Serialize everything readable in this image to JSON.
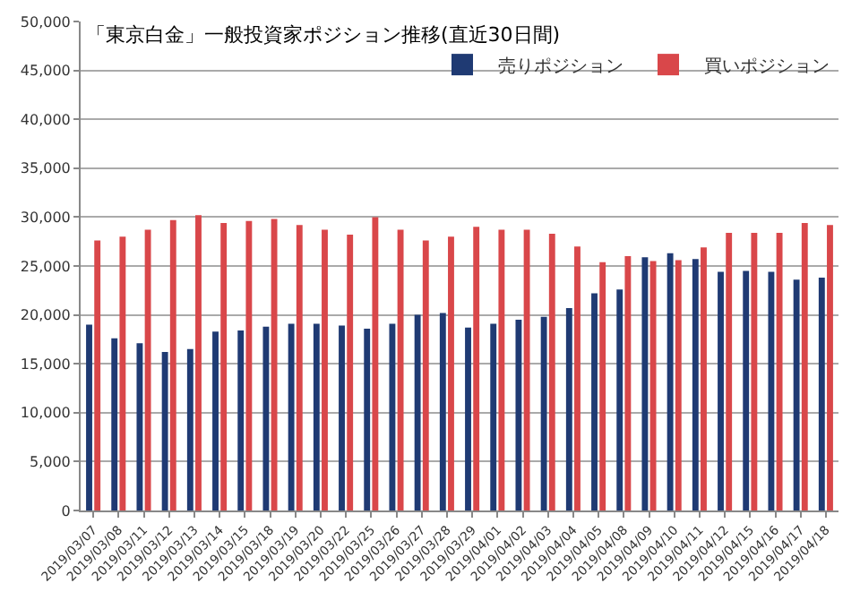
{
  "chart_data": {
    "type": "bar",
    "title": "「東京白金」一般投資家ポジション推移(直近30日間)",
    "categories": [
      "2019/03/07",
      "2019/03/08",
      "2019/03/11",
      "2019/03/12",
      "2019/03/13",
      "2019/03/14",
      "2019/03/15",
      "2019/03/18",
      "2019/03/19",
      "2019/03/20",
      "2019/03/22",
      "2019/03/25",
      "2019/03/26",
      "2019/03/27",
      "2019/03/28",
      "2019/03/29",
      "2019/04/01",
      "2019/04/02",
      "2019/04/03",
      "2019/04/04",
      "2019/04/05",
      "2019/04/08",
      "2019/04/09",
      "2019/04/10",
      "2019/04/11",
      "2019/04/12",
      "2019/04/15",
      "2019/04/16",
      "2019/04/17",
      "2019/04/18"
    ],
    "series": [
      {
        "name": "売りポジション",
        "color": "#1f3a73",
        "values": [
          19000,
          17600,
          17100,
          16200,
          16500,
          18300,
          18400,
          18800,
          19100,
          19100,
          18900,
          18600,
          19100,
          20000,
          20200,
          18700,
          19100,
          19500,
          19800,
          20700,
          22200,
          22600,
          25900,
          26300,
          25700,
          24400,
          24500,
          24400,
          23600,
          23800
        ]
      },
      {
        "name": "買いポジション",
        "color": "#d9474a",
        "values": [
          27600,
          28000,
          28700,
          29700,
          30200,
          29400,
          29600,
          29800,
          29200,
          28700,
          28200,
          30000,
          28700,
          27600,
          28000,
          29000,
          28700,
          28700,
          28300,
          27000,
          25400,
          26000,
          25500,
          25600,
          26900,
          28400,
          28400,
          28400,
          29400,
          29200
        ]
      }
    ],
    "ylim": [
      0,
      50000
    ],
    "yticks": [
      {
        "value": 0,
        "label": "0"
      },
      {
        "value": 5000,
        "label": "5,000"
      },
      {
        "value": 10000,
        "label": "10,000"
      },
      {
        "value": 15000,
        "label": "15,000"
      },
      {
        "value": 20000,
        "label": "20,000"
      },
      {
        "value": 25000,
        "label": "25,000"
      },
      {
        "value": 30000,
        "label": "30,000"
      },
      {
        "value": 35000,
        "label": "35,000"
      },
      {
        "value": 40000,
        "label": "40,000"
      },
      {
        "value": 45000,
        "label": "45,000"
      },
      {
        "value": 50000,
        "label": "50,000"
      }
    ],
    "grid": "y",
    "legend": "top right"
  }
}
